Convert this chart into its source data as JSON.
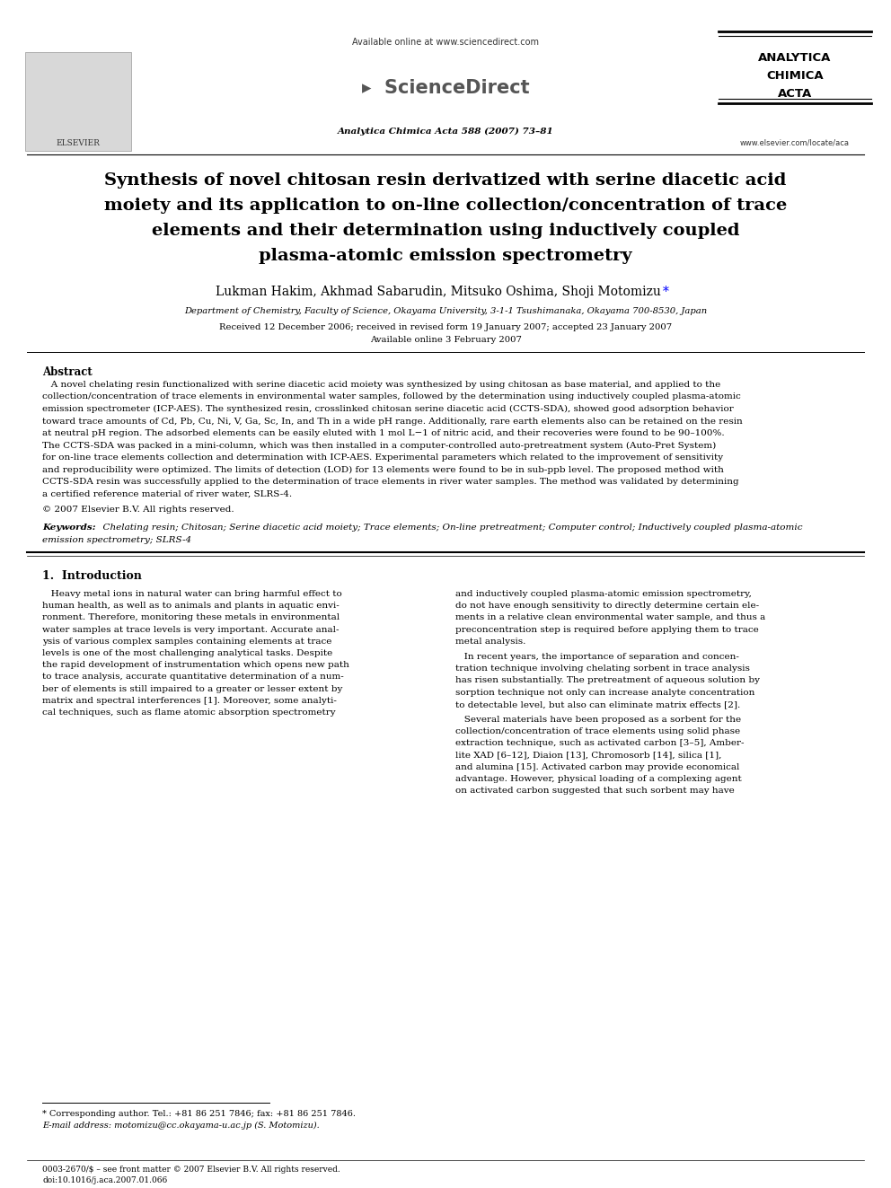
{
  "bg_color": "#ffffff",
  "available_online": "Available online at www.sciencedirect.com",
  "journal_line": "Analytica Chimica Acta 588 (2007) 73–81",
  "journal_name_lines": [
    "ANALYTICA",
    "CHIMICA",
    "ACTA"
  ],
  "website": "www.elsevier.com/locate/aca",
  "title_lines": [
    "Synthesis of novel chitosan resin derivatized with serine diacetic acid",
    "moiety and its application to on-line collection/concentration of trace",
    "elements and their determination using inductively coupled",
    "plasma-atomic emission spectrometry"
  ],
  "authors": "Lukman Hakim, Akhmad Sabarudin, Mitsuko Oshima, Shoji Motomizu",
  "affiliation": "Department of Chemistry, Faculty of Science, Okayama University, 3-1-1 Tsushimanaka, Okayama 700-8530, Japan",
  "received": "Received 12 December 2006; received in revised form 19 January 2007; accepted 23 January 2007",
  "available_online2": "Available online 3 February 2007",
  "abstract_title": "Abstract",
  "abstract_lines": [
    "   A novel chelating resin functionalized with serine diacetic acid moiety was synthesized by using chitosan as base material, and applied to the",
    "collection/concentration of trace elements in environmental water samples, followed by the determination using inductively coupled plasma-atomic",
    "emission spectrometer (ICP-AES). The synthesized resin, crosslinked chitosan serine diacetic acid (CCTS-SDA), showed good adsorption behavior",
    "toward trace amounts of Cd, Pb, Cu, Ni, V, Ga, Sc, In, and Th in a wide pH range. Additionally, rare earth elements also can be retained on the resin",
    "at neutral pH region. The adsorbed elements can be easily eluted with 1 mol L−1 of nitric acid, and their recoveries were found to be 90–100%.",
    "The CCTS-SDA was packed in a mini-column, which was then installed in a computer-controlled auto-pretreatment system (Auto-Pret System)",
    "for on-line trace elements collection and determination with ICP-AES. Experimental parameters which related to the improvement of sensitivity",
    "and reproducibility were optimized. The limits of detection (LOD) for 13 elements were found to be in sub-ppb level. The proposed method with",
    "CCTS-SDA resin was successfully applied to the determination of trace elements in river water samples. The method was validated by determining",
    "a certified reference material of river water, SLRS-4."
  ],
  "copyright": "© 2007 Elsevier B.V. All rights reserved.",
  "keywords_label": "Keywords:",
  "keywords_line1": "  Chelating resin; Chitosan; Serine diacetic acid moiety; Trace elements; On-line pretreatment; Computer control; Inductively coupled plasma-atomic",
  "keywords_line2": "emission spectrometry; SLRS-4",
  "section1_title": "1.  Introduction",
  "intro_col1_lines": [
    "   Heavy metal ions in natural water can bring harmful effect to",
    "human health, as well as to animals and plants in aquatic envi-",
    "ronment. Therefore, monitoring these metals in environmental",
    "water samples at trace levels is very important. Accurate anal-",
    "ysis of various complex samples containing elements at trace",
    "levels is one of the most challenging analytical tasks. Despite",
    "the rapid development of instrumentation which opens new path",
    "to trace analysis, accurate quantitative determination of a num-",
    "ber of elements is still impaired to a greater or lesser extent by",
    "matrix and spectral interferences [1]. Moreover, some analyti-",
    "cal techniques, such as flame atomic absorption spectrometry"
  ],
  "intro_col2_para1_lines": [
    "and inductively coupled plasma-atomic emission spectrometry,",
    "do not have enough sensitivity to directly determine certain ele-",
    "ments in a relative clean environmental water sample, and thus a",
    "preconcentration step is required before applying them to trace",
    "metal analysis."
  ],
  "intro_col2_para2_lines": [
    "   In recent years, the importance of separation and concen-",
    "tration technique involving chelating sorbent in trace analysis",
    "has risen substantially. The pretreatment of aqueous solution by",
    "sorption technique not only can increase analyte concentration",
    "to detectable level, but also can eliminate matrix effects [2]."
  ],
  "intro_col2_para3_lines": [
    "   Several materials have been proposed as a sorbent for the",
    "collection/concentration of trace elements using solid phase",
    "extraction technique, such as activated carbon [3–5], Amber-",
    "lite XAD [6–12], Diaion [13], Chromosorb [14], silica [1],",
    "and alumina [15]. Activated carbon may provide economical",
    "advantage. However, physical loading of a complexing agent",
    "on activated carbon suggested that such sorbent may have"
  ],
  "footnote_line1": "* Corresponding author. Tel.: +81 86 251 7846; fax: +81 86 251 7846.",
  "footnote_line2": "E-mail address: motomizu@cc.okayama-u.ac.jp (S. Motomizu).",
  "bottom_issn": "0003-2670/$ – see front matter © 2007 Elsevier B.V. All rights reserved.",
  "bottom_doi": "doi:10.1016/j.aca.2007.01.066"
}
